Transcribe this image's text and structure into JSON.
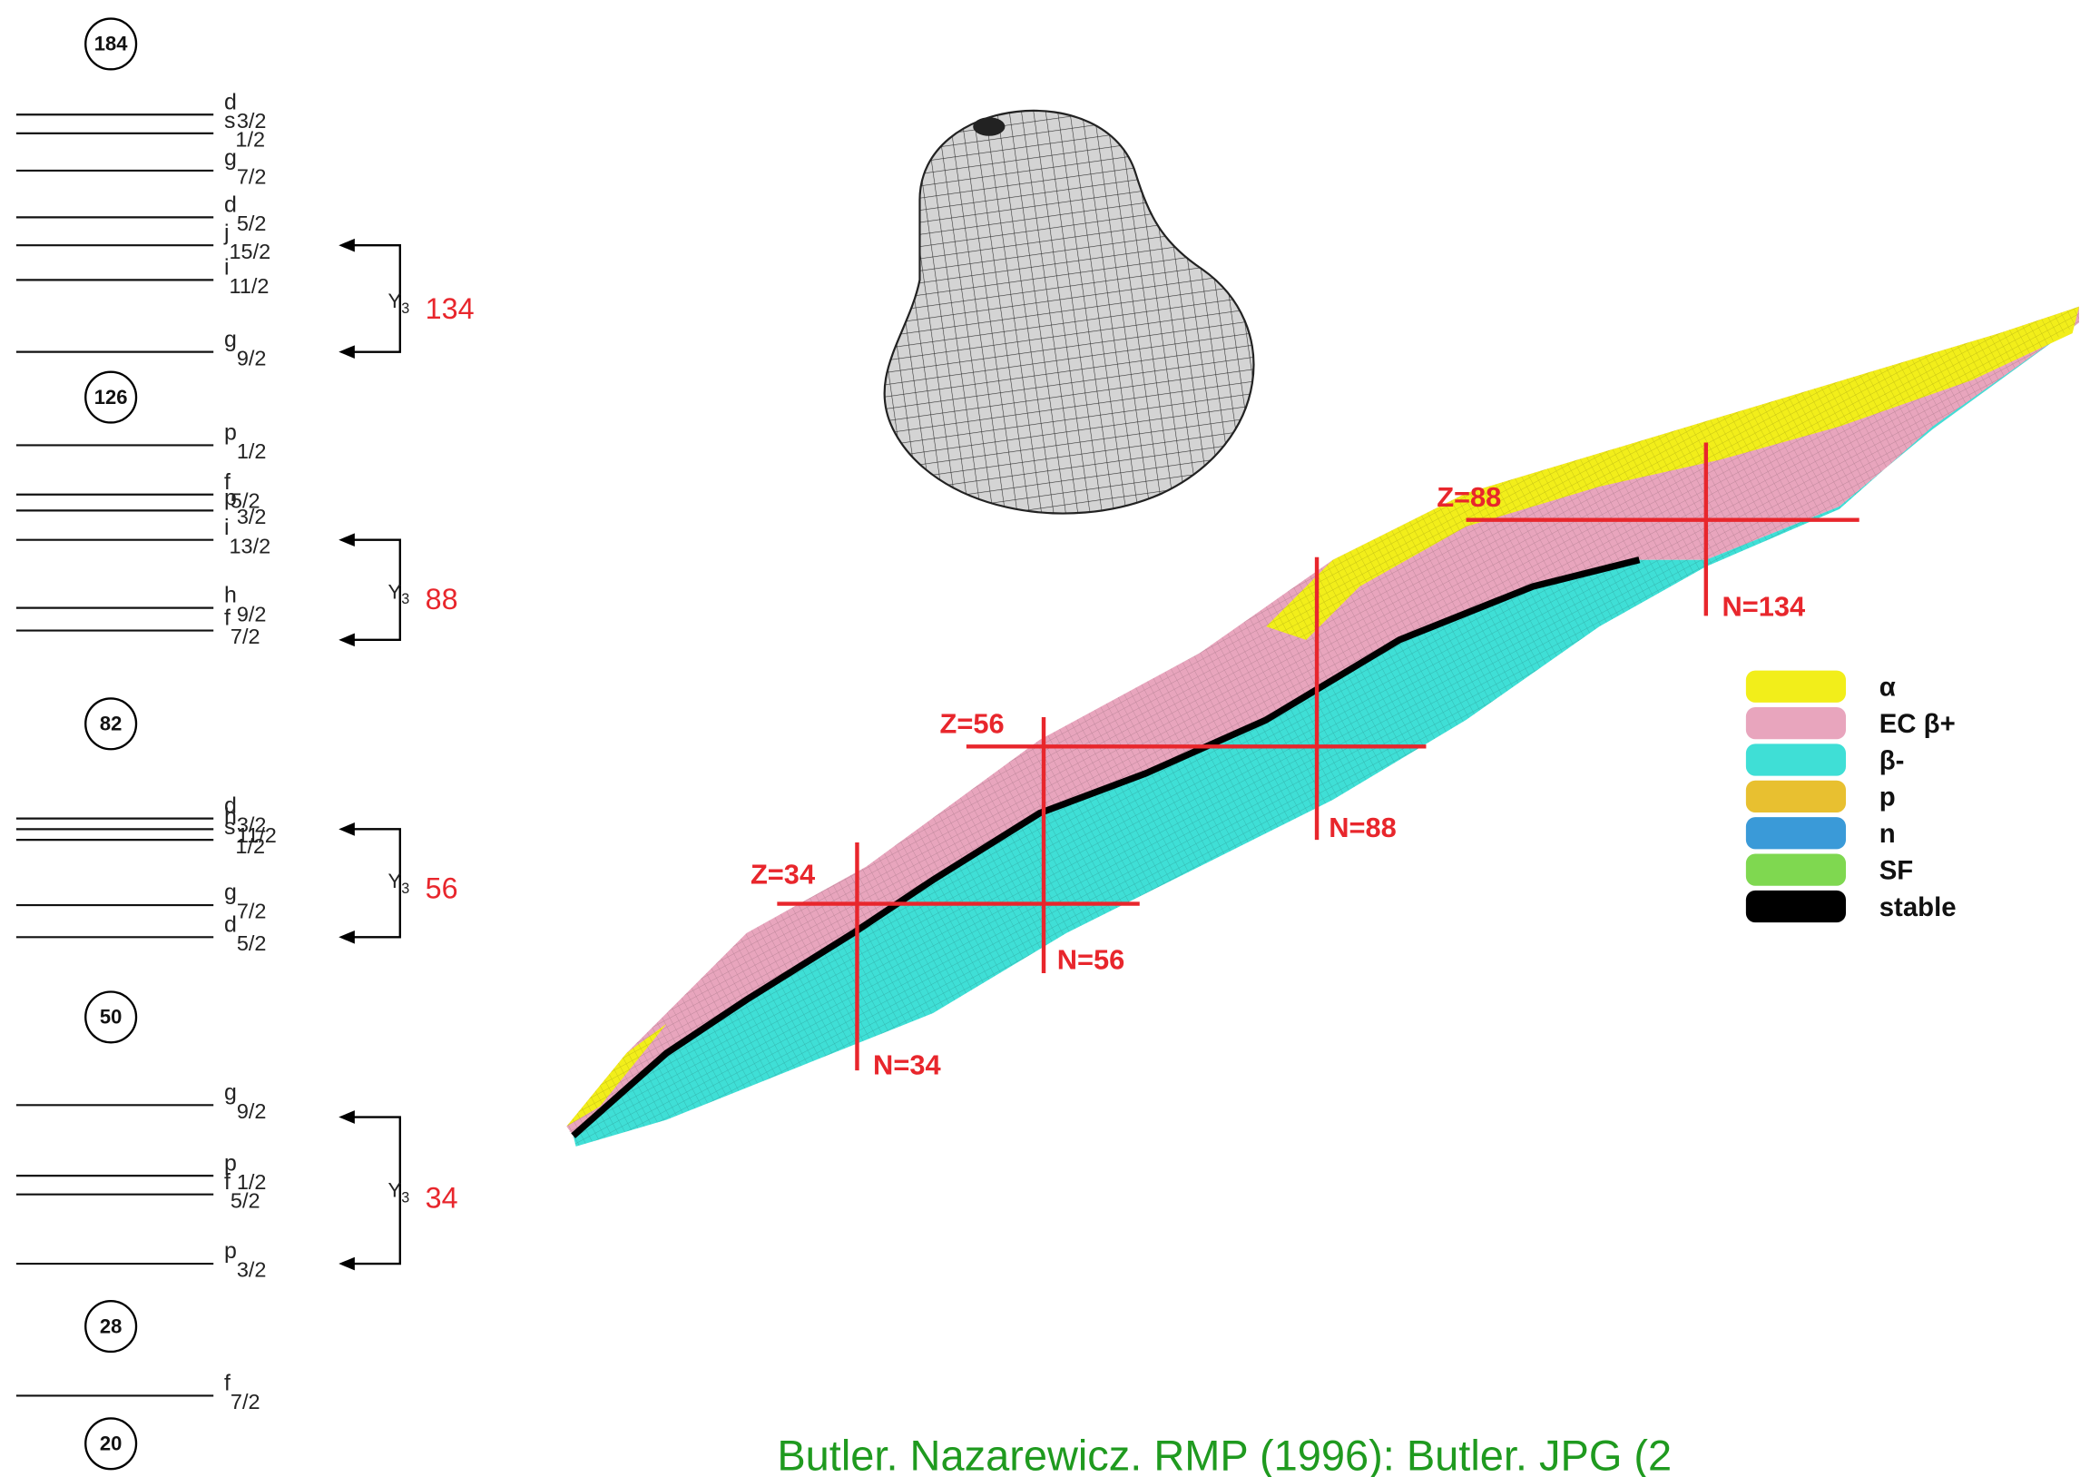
{
  "magic_numbers": [
    184,
    126,
    82,
    50,
    28,
    20
  ],
  "shell_levels": [
    {
      "label": "d",
      "sub": "3/2"
    },
    {
      "label": "s",
      "sub": "1/2"
    },
    {
      "label": "g",
      "sub": "7/2"
    },
    {
      "label": "d",
      "sub": "5/2"
    },
    {
      "label": "j",
      "sub": "15/2"
    },
    {
      "label": "i",
      "sub": "11/2"
    },
    {
      "label": "g",
      "sub": "9/2"
    },
    {
      "label": "p",
      "sub": "1/2"
    },
    {
      "label": "f",
      "sub": "5/2"
    },
    {
      "label": "p",
      "sub": "3/2"
    },
    {
      "label": "i",
      "sub": "13/2"
    },
    {
      "label": "h",
      "sub": "9/2"
    },
    {
      "label": "f",
      "sub": "7/2"
    },
    {
      "label": "d",
      "sub": "3/2"
    },
    {
      "label": "h",
      "sub": "11/2"
    },
    {
      "label": "s",
      "sub": "1/2"
    },
    {
      "label": "g",
      "sub": "7/2"
    },
    {
      "label": "d",
      "sub": "5/2"
    },
    {
      "label": "g",
      "sub": "9/2"
    },
    {
      "label": "p",
      "sub": "1/2"
    },
    {
      "label": "f",
      "sub": "5/2"
    },
    {
      "label": "p",
      "sub": "3/2"
    },
    {
      "label": "f",
      "sub": "7/2"
    }
  ],
  "octupole_pairs": [
    {
      "symbol": "Y",
      "sub": "3",
      "value": 134
    },
    {
      "symbol": "Y",
      "sub": "3",
      "value": 88
    },
    {
      "symbol": "Y",
      "sub": "3",
      "value": 56
    },
    {
      "symbol": "Y",
      "sub": "3",
      "value": 34
    }
  ],
  "chart_labels": [
    "Z=88",
    "N=134",
    "N=88",
    "Z=56",
    "N=56",
    "Z=34",
    "N=34"
  ],
  "legend": [
    {
      "label": "α",
      "color": "#f2ee1a"
    },
    {
      "label": "EC β+",
      "color": "#e8a5bd"
    },
    {
      "label": "β-",
      "color": "#3fdfd6"
    },
    {
      "label": "p",
      "color": "#e8c030"
    },
    {
      "label": "n",
      "color": "#3a9ad8"
    },
    {
      "label": "SF",
      "color": "#7fd850"
    },
    {
      "label": "stable",
      "color": "#000000"
    }
  ],
  "citation": "Butler. Nazarewicz. RMP (1996): Butler. JPG (2"
}
